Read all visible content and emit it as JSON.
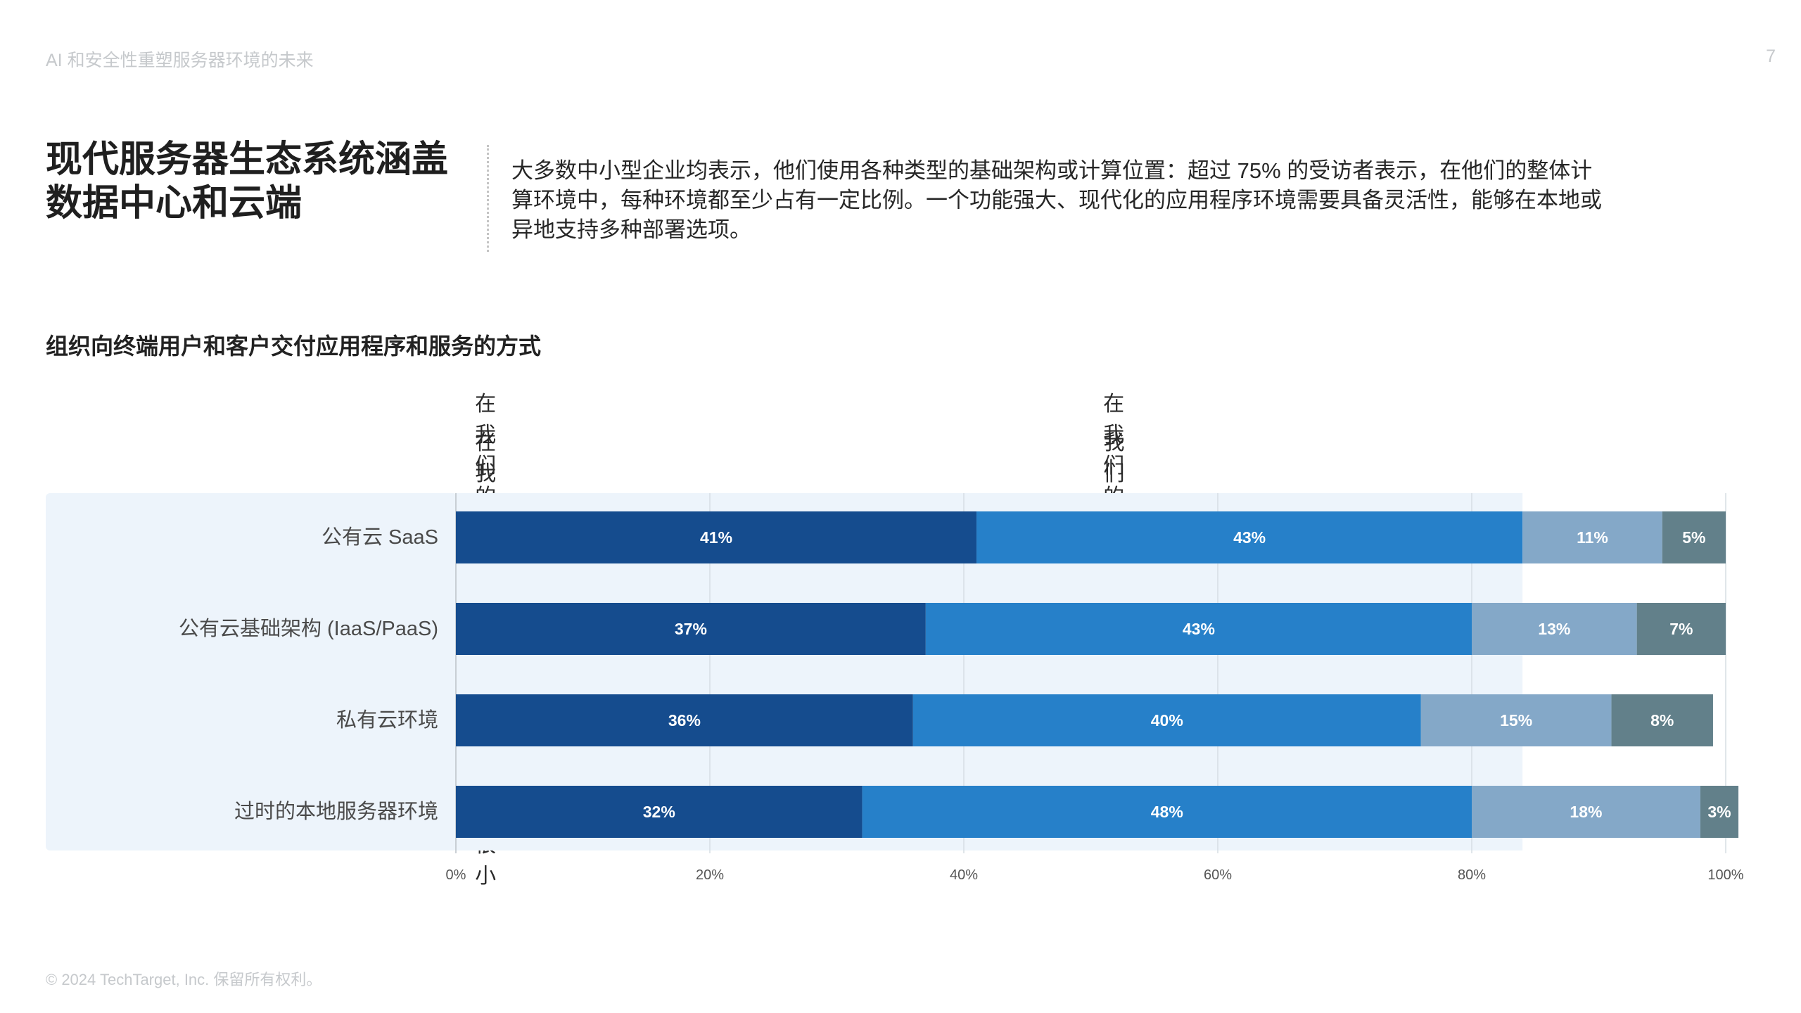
{
  "header": {
    "title": "AI 和安全性重塑服务器环境的未来",
    "page_number": "7"
  },
  "heading": {
    "line1": "现代服务器生态系统涵盖",
    "line2": "数据中心和云端"
  },
  "intro_text": "大多数中小型企业均表示，他们使用各种类型的基础架构或计算位置：超过 75% 的受访者表示，在他们的整体计算环境中，每种环境都至少占有一定比例。一个功能强大、现代化的应用程序环境需要具备灵活性，能够在本地或异地支持多种部署选项。",
  "chart_data": {
    "type": "bar",
    "orientation": "horizontal",
    "stacked": true,
    "title": "组织向终端用户和客户交付应用程序和服务的方式",
    "categories": [
      "公有云 SaaS",
      "公有云基础架构 (IaaS/PaaS)",
      "私有云环境",
      "过时的本地服务器环境"
    ],
    "series": [
      {
        "name": "在我们的整体计算环境中占比很大",
        "color": "#154c8e",
        "values": [
          41,
          37,
          36,
          32
        ],
        "labels": [
          "41%",
          "37%",
          "36%",
          "32%"
        ]
      },
      {
        "name": "在我们的整体计算环境中占比适中",
        "color": "#2680c9",
        "values": [
          43,
          43,
          40,
          48
        ],
        "labels": [
          "43%",
          "43%",
          "40%",
          "48%"
        ]
      },
      {
        "name": "在我们的整体计算环境中占比很小",
        "color": "#84a8c8",
        "values": [
          11,
          13,
          15,
          18
        ],
        "labels": [
          "11%",
          "13%",
          "15%",
          "18%"
        ]
      },
      {
        "name": "我们的整体计算环境中未包含",
        "color": "#62808a",
        "values": [
          5,
          7,
          8,
          3
        ],
        "labels": [
          "5%",
          "7%",
          "8%",
          "3%"
        ]
      }
    ],
    "xlim": [
      0,
      100
    ],
    "x_ticks": [
      "0%",
      "20%",
      "40%",
      "60%",
      "80%",
      "100%"
    ],
    "grid": true,
    "legend_placement": "top"
  },
  "footer": {
    "copyright": "© 2024 TechTarget, Inc. 保留所有权利。"
  }
}
